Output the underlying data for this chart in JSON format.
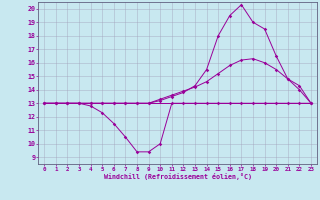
{
  "xlabel": "Windchill (Refroidissement éolien,°C)",
  "xlim": [
    -0.5,
    23.5
  ],
  "ylim": [
    8.5,
    20.5
  ],
  "yticks": [
    9,
    10,
    11,
    12,
    13,
    14,
    15,
    16,
    17,
    18,
    19,
    20
  ],
  "xticks": [
    0,
    1,
    2,
    3,
    4,
    5,
    6,
    7,
    8,
    9,
    10,
    11,
    12,
    13,
    14,
    15,
    16,
    17,
    18,
    19,
    20,
    21,
    22,
    23
  ],
  "background_color": "#c8e8f0",
  "line_color": "#990099",
  "grid_color": "#a0a0b8",
  "series": [
    {
      "x": [
        0,
        1,
        2,
        3,
        4,
        5,
        6,
        7,
        8,
        9,
        10,
        11,
        12,
        13,
        14,
        15,
        16,
        17,
        18,
        19,
        20,
        21,
        22,
        23
      ],
      "y": [
        13,
        13,
        13,
        13,
        12.8,
        12.3,
        11.5,
        10.5,
        9.4,
        9.4,
        10.0,
        13,
        13,
        13,
        13,
        13,
        13,
        13,
        13,
        13,
        13,
        13,
        13,
        13
      ]
    },
    {
      "x": [
        0,
        23
      ],
      "y": [
        13,
        13
      ]
    },
    {
      "x": [
        0,
        1,
        2,
        3,
        4,
        5,
        6,
        7,
        8,
        9,
        10,
        11,
        12,
        13,
        14,
        15,
        16,
        17,
        18,
        19,
        20,
        21,
        22,
        23
      ],
      "y": [
        13,
        13,
        13,
        13,
        13,
        13,
        13,
        13,
        13,
        13,
        13.3,
        13.6,
        13.9,
        14.2,
        14.6,
        15.2,
        15.8,
        16.2,
        16.3,
        16.0,
        15.5,
        14.8,
        14.3,
        13.0
      ]
    },
    {
      "x": [
        0,
        1,
        2,
        3,
        4,
        5,
        6,
        7,
        8,
        9,
        10,
        11,
        12,
        13,
        14,
        15,
        16,
        17,
        18,
        19,
        20,
        21,
        22,
        23
      ],
      "y": [
        13,
        13,
        13,
        13,
        13,
        13,
        13,
        13,
        13,
        13,
        13.2,
        13.5,
        13.8,
        14.3,
        15.5,
        18.0,
        19.5,
        20.3,
        19.0,
        18.5,
        16.5,
        14.8,
        14.0,
        13.0
      ]
    }
  ]
}
